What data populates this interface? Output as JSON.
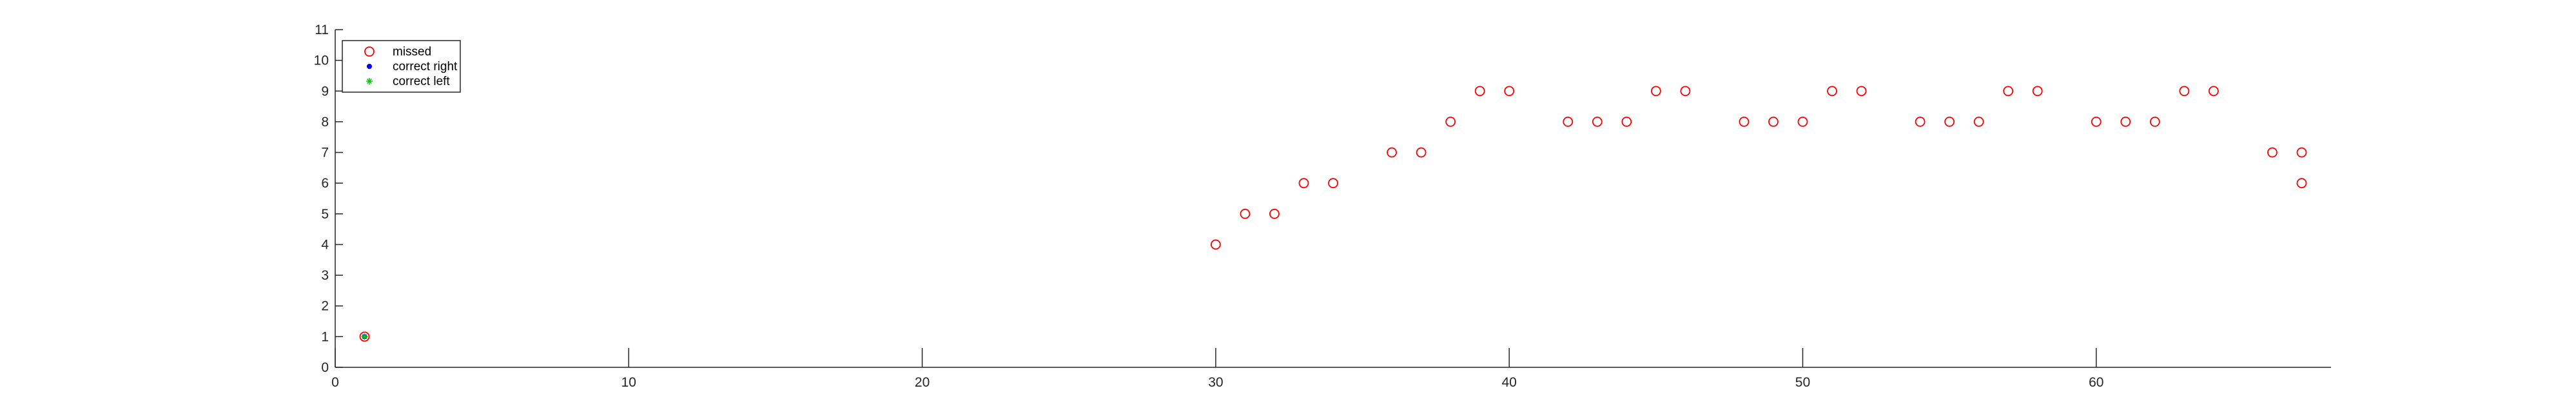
{
  "chart_data": {
    "type": "scatter",
    "title": "",
    "xlabel": "",
    "ylabel": "",
    "xlim": [
      0,
      68
    ],
    "ylim": [
      0,
      11
    ],
    "xticks": [
      0,
      10,
      20,
      30,
      40,
      50,
      60
    ],
    "yticks": [
      0,
      1,
      2,
      3,
      4,
      5,
      6,
      7,
      8,
      9,
      10,
      11
    ],
    "grid": false,
    "legend_position": "top-left",
    "series": [
      {
        "name": "missed",
        "marker": "circle-open",
        "color": "#ff0000",
        "points": [
          [
            1,
            1
          ],
          [
            30,
            4
          ],
          [
            31,
            5
          ],
          [
            32,
            5
          ],
          [
            33,
            6
          ],
          [
            34,
            6
          ],
          [
            36,
            7
          ],
          [
            37,
            7
          ],
          [
            38,
            8
          ],
          [
            39,
            9
          ],
          [
            40,
            9
          ],
          [
            42,
            8
          ],
          [
            43,
            8
          ],
          [
            44,
            8
          ],
          [
            45,
            9
          ],
          [
            46,
            9
          ],
          [
            48,
            8
          ],
          [
            49,
            8
          ],
          [
            50,
            8
          ],
          [
            51,
            9
          ],
          [
            52,
            9
          ],
          [
            54,
            8
          ],
          [
            55,
            8
          ],
          [
            56,
            8
          ],
          [
            57,
            9
          ],
          [
            58,
            9
          ],
          [
            60,
            8
          ],
          [
            61,
            8
          ],
          [
            62,
            8
          ],
          [
            63,
            9
          ],
          [
            64,
            9
          ],
          [
            66,
            7
          ],
          [
            67,
            7
          ],
          [
            67,
            6
          ]
        ]
      },
      {
        "name": "correct right",
        "marker": "dot",
        "color": "#0000ff",
        "points": [
          [
            1,
            1
          ]
        ]
      },
      {
        "name": "correct left",
        "marker": "asterisk",
        "color": "#00cc00",
        "points": [
          [
            1,
            1
          ]
        ]
      }
    ]
  }
}
